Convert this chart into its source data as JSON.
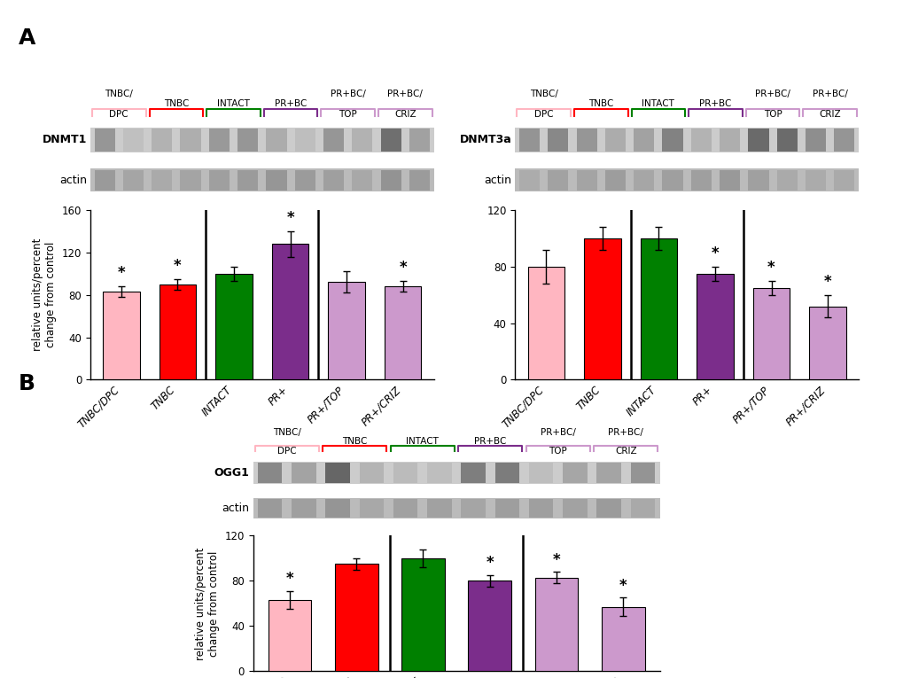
{
  "panel_A_left": {
    "title": "DNMT1",
    "categories": [
      "TNBC/DPC",
      "TNBC",
      "INTACT",
      "PR+",
      "PR+/TOP",
      "PR+/CRIZ"
    ],
    "values": [
      83,
      90,
      100,
      128,
      92,
      88
    ],
    "errors": [
      5,
      5,
      7,
      12,
      10,
      5
    ],
    "bar_colors": [
      "#FFB6C1",
      "#FF0000",
      "#008000",
      "#7B2D8B",
      "#CC99CC",
      "#CC99CC"
    ],
    "significance": [
      true,
      true,
      false,
      true,
      false,
      true
    ],
    "ylim": [
      0,
      160
    ],
    "yticks": [
      0,
      40,
      80,
      120,
      160
    ],
    "ylabel": "relative units/percent\nchange from control",
    "dividers": [
      1.5,
      3.5
    ]
  },
  "panel_A_right": {
    "title": "DNMT3a",
    "categories": [
      "TNBC/DPC",
      "TNBC",
      "INTACT",
      "PR+",
      "PR+/TOP",
      "PR+/CRIZ"
    ],
    "values": [
      80,
      100,
      100,
      75,
      65,
      52
    ],
    "errors": [
      12,
      8,
      8,
      5,
      5,
      8
    ],
    "bar_colors": [
      "#FFB6C1",
      "#FF0000",
      "#008000",
      "#7B2D8B",
      "#CC99CC",
      "#CC99CC"
    ],
    "significance": [
      false,
      false,
      false,
      true,
      true,
      true
    ],
    "ylim": [
      0,
      120
    ],
    "yticks": [
      0,
      40,
      80,
      120
    ],
    "ylabel": "",
    "dividers": [
      1.5,
      3.5
    ]
  },
  "panel_B": {
    "title": "OGG1",
    "categories": [
      "TNBC/DPC",
      "TNBC",
      "INTACT",
      "PR+",
      "PR+/TOP",
      "PR+/CRIZ"
    ],
    "values": [
      63,
      95,
      100,
      80,
      83,
      57
    ],
    "errors": [
      8,
      5,
      8,
      5,
      5,
      8
    ],
    "bar_colors": [
      "#FFB6C1",
      "#FF0000",
      "#008000",
      "#7B2D8B",
      "#CC99CC",
      "#CC99CC"
    ],
    "significance": [
      true,
      false,
      false,
      true,
      true,
      true
    ],
    "ylim": [
      0,
      120
    ],
    "yticks": [
      0,
      40,
      80,
      120
    ],
    "ylabel": "relative units/percent\nchange from control",
    "dividers": [
      1.5,
      3.5
    ]
  },
  "bracket_groups": [
    {
      "label": "TNBC/\nDPC",
      "color": "#FFB6C1",
      "n_lanes": 2
    },
    {
      "label": "TNBC",
      "color": "#FF0000",
      "n_lanes": 2
    },
    {
      "label": "INTACT",
      "color": "#008000",
      "n_lanes": 2
    },
    {
      "label": "PR+BC",
      "color": "#7B2D8B",
      "n_lanes": 2
    },
    {
      "label": "PR+BC/\nTOP",
      "color": "#CC99CC",
      "n_lanes": 2
    },
    {
      "label": "PR+BC/\nCRIZ",
      "color": "#CC99CC",
      "n_lanes": 2
    }
  ],
  "background_color": "#FFFFFF"
}
